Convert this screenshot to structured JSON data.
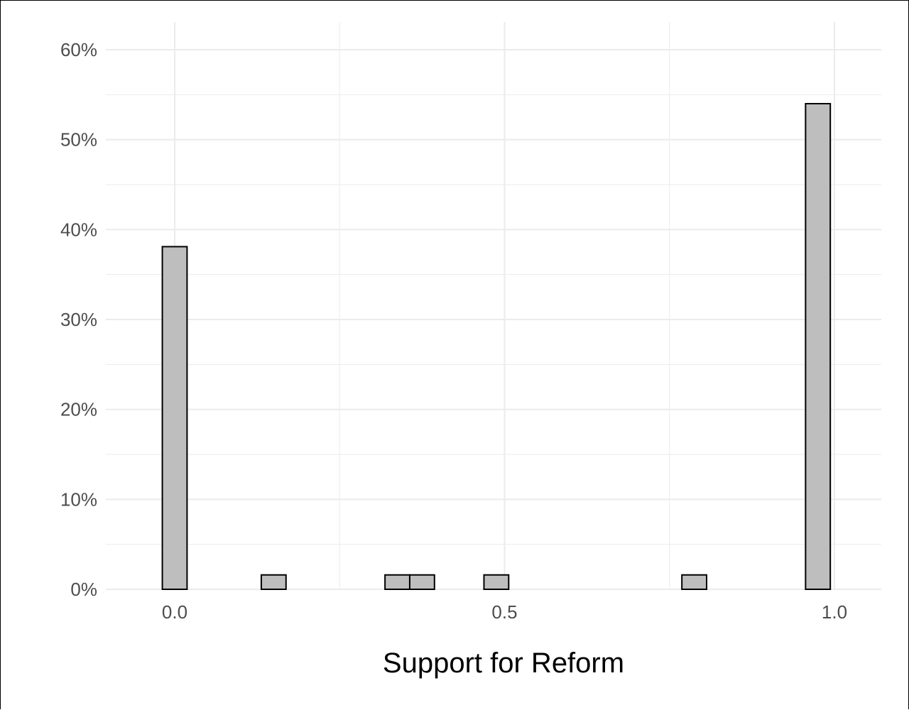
{
  "chart_data": {
    "type": "bar",
    "subtype": "histogram",
    "title": "",
    "xlabel": "Support for Reform",
    "ylabel": "",
    "x_ticks": [
      0.0,
      0.5,
      1.0
    ],
    "x_tick_labels": [
      "0.0",
      "0.5",
      "1.0"
    ],
    "y_ticks": [
      0,
      10,
      20,
      30,
      40,
      50,
      60
    ],
    "y_tick_labels": [
      "0%",
      "10%",
      "20%",
      "30%",
      "40%",
      "50%",
      "60%"
    ],
    "xlim": [
      -0.05,
      1.05
    ],
    "ylim": [
      0,
      60
    ],
    "bin_width": 0.0375,
    "bins": [
      {
        "x": 0.0,
        "value": 38.1
      },
      {
        "x": 0.0375,
        "value": 0
      },
      {
        "x": 0.075,
        "value": 0
      },
      {
        "x": 0.1125,
        "value": 0
      },
      {
        "x": 0.15,
        "value": 1.6
      },
      {
        "x": 0.1875,
        "value": 0
      },
      {
        "x": 0.225,
        "value": 0
      },
      {
        "x": 0.2625,
        "value": 0
      },
      {
        "x": 0.3,
        "value": 0
      },
      {
        "x": 0.3375,
        "value": 1.6
      },
      {
        "x": 0.375,
        "value": 1.6
      },
      {
        "x": 0.4125,
        "value": 0
      },
      {
        "x": 0.45,
        "value": 0
      },
      {
        "x": 0.4875,
        "value": 1.6
      },
      {
        "x": 0.525,
        "value": 0
      },
      {
        "x": 0.5625,
        "value": 0
      },
      {
        "x": 0.6,
        "value": 0
      },
      {
        "x": 0.6375,
        "value": 0
      },
      {
        "x": 0.675,
        "value": 0
      },
      {
        "x": 0.7125,
        "value": 0
      },
      {
        "x": 0.75,
        "value": 0
      },
      {
        "x": 0.7875,
        "value": 1.6
      },
      {
        "x": 0.825,
        "value": 0
      },
      {
        "x": 0.8625,
        "value": 0
      },
      {
        "x": 0.9,
        "value": 0
      },
      {
        "x": 0.9375,
        "value": 0
      },
      {
        "x": 0.975,
        "value": 54.0
      },
      {
        "x": 1.0125,
        "value": 0
      }
    ],
    "grid": true,
    "legend": "none",
    "colors": {
      "bar_fill": "#bebebe",
      "bar_stroke": "#000000",
      "grid": "#ebebeb",
      "tick_text": "#4d4d4d",
      "axis_title": "#000000"
    }
  }
}
